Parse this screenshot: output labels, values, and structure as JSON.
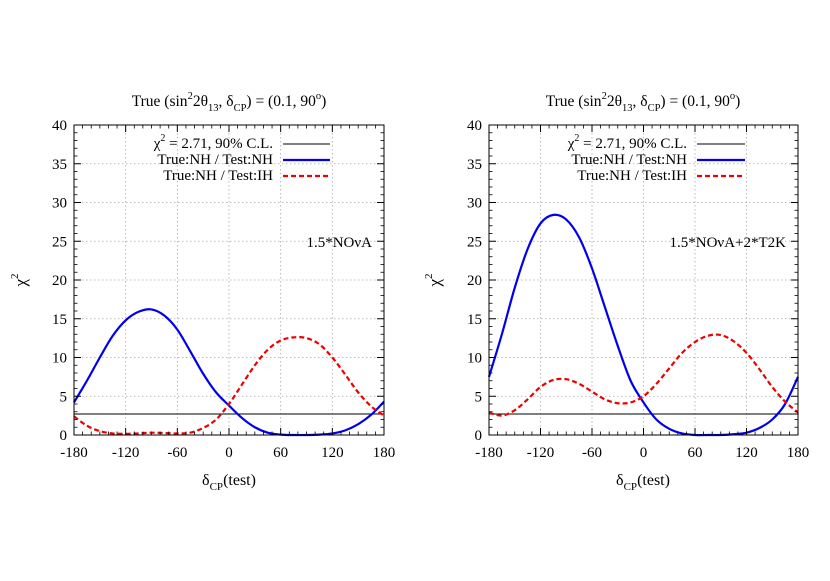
{
  "chart_data": [
    {
      "type": "line",
      "title": "True (sin²2θ₁₃, δ_CP) = (0.1, 90°)",
      "title_parts": {
        "prefix": "True (sin",
        "sup": "2",
        "mid": "2θ",
        "sub13": "13",
        "comma": ", δ",
        "subcp": "CP",
        "values": ") = (0.1, 90",
        "deg": "o",
        "close": ")"
      },
      "xlabel": "δ_CP(test)",
      "xlabel_parts": {
        "main": "δ",
        "sub": "CP",
        "rest": "(test)"
      },
      "ylabel": "χ²",
      "ylabel_parts": {
        "main": "χ",
        "sup": "2"
      },
      "xlim": [
        -180,
        180
      ],
      "ylim": [
        0,
        40
      ],
      "xticks": [
        -180,
        -120,
        -60,
        0,
        60,
        120,
        180
      ],
      "yticks": [
        0,
        5,
        10,
        15,
        20,
        25,
        30,
        35,
        40
      ],
      "grid": true,
      "legend_position": "top-right",
      "annotation": "1.5*NOνA",
      "x": [
        -180,
        -165,
        -150,
        -135,
        -120,
        -105,
        -90,
        -75,
        -60,
        -45,
        -30,
        -15,
        0,
        15,
        30,
        45,
        60,
        75,
        90,
        105,
        120,
        135,
        150,
        165,
        180
      ],
      "series": [
        {
          "name": "χ² = 2.71, 90% C.L.",
          "legend_parts": {
            "main": "χ",
            "sup": "2",
            "rest": " = 2.71, 90% C.L."
          },
          "color": "#000000",
          "dash": "solid",
          "values": [
            2.71,
            2.71,
            2.71,
            2.71,
            2.71,
            2.71,
            2.71,
            2.71,
            2.71,
            2.71,
            2.71,
            2.71,
            2.71,
            2.71,
            2.71,
            2.71,
            2.71,
            2.71,
            2.71,
            2.71,
            2.71,
            2.71,
            2.71,
            2.71,
            2.71
          ]
        },
        {
          "name": "True:NH / Test:NH",
          "color": "#0000ee",
          "dash": "solid",
          "values": [
            4.2,
            7.0,
            10.0,
            12.8,
            14.8,
            15.9,
            16.2,
            15.4,
            13.6,
            10.8,
            7.9,
            5.5,
            3.8,
            2.2,
            1.0,
            0.3,
            0.05,
            0.0,
            0.0,
            0.05,
            0.2,
            0.6,
            1.4,
            2.6,
            4.3
          ]
        },
        {
          "name": "True:NH / Test:IH",
          "color": "#ee0000",
          "dash": "dashed",
          "values": [
            2.4,
            1.2,
            0.5,
            0.2,
            0.15,
            0.2,
            0.3,
            0.25,
            0.2,
            0.3,
            0.9,
            2.0,
            4.0,
            6.5,
            9.0,
            11.0,
            12.2,
            12.6,
            12.5,
            11.7,
            10.0,
            7.8,
            5.5,
            3.7,
            2.5
          ]
        }
      ]
    },
    {
      "type": "line",
      "title": "True (sin²2θ₁₃, δ_CP) = (0.1, 90°)",
      "title_parts": {
        "prefix": "True (sin",
        "sup": "2",
        "mid": "2θ",
        "sub13": "13",
        "comma": ", δ",
        "subcp": "CP",
        "values": ") = (0.1, 90",
        "deg": "o",
        "close": ")"
      },
      "xlabel": "δ_CP(test)",
      "xlabel_parts": {
        "main": "δ",
        "sub": "CP",
        "rest": "(test)"
      },
      "ylabel": "χ²",
      "ylabel_parts": {
        "main": "χ",
        "sup": "2"
      },
      "xlim": [
        -180,
        180
      ],
      "ylim": [
        0,
        40
      ],
      "xticks": [
        -180,
        -120,
        -60,
        0,
        60,
        120,
        180
      ],
      "yticks": [
        0,
        5,
        10,
        15,
        20,
        25,
        30,
        35,
        40
      ],
      "grid": true,
      "legend_position": "top-right",
      "annotation": "1.5*NOνA+2*T2K",
      "x": [
        -180,
        -165,
        -150,
        -135,
        -120,
        -105,
        -90,
        -75,
        -60,
        -45,
        -30,
        -15,
        0,
        15,
        30,
        45,
        60,
        75,
        90,
        105,
        120,
        135,
        150,
        165,
        180
      ],
      "series": [
        {
          "name": "χ² = 2.71, 90% C.L.",
          "legend_parts": {
            "main": "χ",
            "sup": "2",
            "rest": " = 2.71, 90% C.L."
          },
          "color": "#000000",
          "dash": "solid",
          "values": [
            2.71,
            2.71,
            2.71,
            2.71,
            2.71,
            2.71,
            2.71,
            2.71,
            2.71,
            2.71,
            2.71,
            2.71,
            2.71,
            2.71,
            2.71,
            2.71,
            2.71,
            2.71,
            2.71,
            2.71,
            2.71,
            2.71,
            2.71,
            2.71,
            2.71
          ]
        },
        {
          "name": "True:NH / Test:NH",
          "color": "#0000ee",
          "dash": "solid",
          "values": [
            7.5,
            13.0,
            19.0,
            24.0,
            27.3,
            28.4,
            27.8,
            25.5,
            21.5,
            16.5,
            11.5,
            7.0,
            4.2,
            2.0,
            0.8,
            0.2,
            0.0,
            0.0,
            0.0,
            0.1,
            0.3,
            0.9,
            2.0,
            4.0,
            7.5
          ]
        },
        {
          "name": "True:NH / Test:IH",
          "color": "#ee0000",
          "dash": "dashed",
          "values": [
            2.9,
            2.5,
            3.2,
            4.6,
            6.2,
            7.1,
            7.2,
            6.6,
            5.6,
            4.6,
            4.1,
            4.2,
            5.0,
            6.6,
            8.6,
            10.6,
            12.0,
            12.8,
            12.9,
            12.1,
            10.6,
            8.5,
            6.2,
            4.3,
            2.9
          ]
        }
      ]
    }
  ]
}
